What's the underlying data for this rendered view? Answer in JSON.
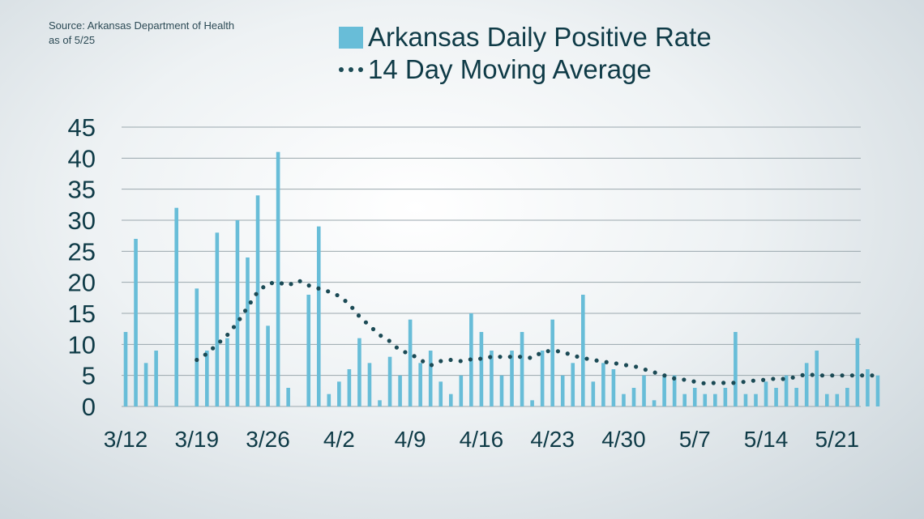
{
  "source": {
    "line1": "Source: Arkansas Department of Health",
    "line2": "as of 5/25"
  },
  "chart_data": {
    "type": "bar",
    "title": "",
    "xlabel": "",
    "ylabel": "",
    "ylim": [
      0,
      45
    ],
    "yticks": [
      0,
      5,
      10,
      15,
      20,
      25,
      30,
      35,
      40,
      45
    ],
    "xtick_labels": [
      "3/12",
      "3/19",
      "3/26",
      "4/2",
      "4/9",
      "4/16",
      "4/23",
      "4/30",
      "5/7",
      "5/14",
      "5/21"
    ],
    "grid": true,
    "legend_position": "top",
    "categories": [
      "3/12",
      "3/13",
      "3/14",
      "3/15",
      "3/16",
      "3/17",
      "3/18",
      "3/19",
      "3/20",
      "3/21",
      "3/22",
      "3/23",
      "3/24",
      "3/25",
      "3/26",
      "3/27",
      "3/28",
      "3/29",
      "3/30",
      "3/31",
      "4/1",
      "4/2",
      "4/3",
      "4/4",
      "4/5",
      "4/6",
      "4/7",
      "4/8",
      "4/9",
      "4/10",
      "4/11",
      "4/12",
      "4/13",
      "4/14",
      "4/15",
      "4/16",
      "4/17",
      "4/18",
      "4/19",
      "4/20",
      "4/21",
      "4/22",
      "4/23",
      "4/24",
      "4/25",
      "4/26",
      "4/27",
      "4/28",
      "4/29",
      "4/30",
      "5/1",
      "5/2",
      "5/3",
      "5/4",
      "5/5",
      "5/6",
      "5/7",
      "5/8",
      "5/9",
      "5/10",
      "5/11",
      "5/12",
      "5/13",
      "5/14",
      "5/15",
      "5/16",
      "5/17",
      "5/18",
      "5/19",
      "5/20",
      "5/21",
      "5/22",
      "5/23",
      "5/24",
      "5/25"
    ],
    "series": [
      {
        "name": "Arkansas Daily Positive Rate",
        "type": "bar",
        "color": "#68bdd8",
        "values": [
          12,
          27,
          7,
          9,
          null,
          32,
          null,
          19,
          9,
          28,
          11,
          30,
          24,
          34,
          13,
          41,
          3,
          null,
          18,
          29,
          2,
          4,
          6,
          11,
          7,
          1,
          8,
          5,
          14,
          7,
          9,
          4,
          2,
          5,
          15,
          12,
          9,
          5,
          9,
          12,
          1,
          9,
          14,
          5,
          7,
          18,
          4,
          7,
          6,
          2,
          3,
          5,
          1,
          5,
          5,
          2,
          3,
          2,
          2,
          3,
          12,
          2,
          2,
          4,
          3,
          5,
          3,
          7,
          9,
          2,
          2,
          3,
          11,
          6,
          5
        ]
      },
      {
        "name": "14 Day Moving Average",
        "type": "line",
        "style": "dotted",
        "color": "#1b4a55",
        "values": [
          null,
          null,
          null,
          null,
          null,
          null,
          null,
          7.5,
          8.5,
          10,
          11.5,
          13.5,
          16,
          18.5,
          19.8,
          20,
          19.5,
          20.3,
          19.5,
          19,
          18.5,
          17.8,
          16.5,
          14.5,
          13,
          11.5,
          10.5,
          9,
          8.5,
          7.5,
          6.6,
          7.3,
          7.5,
          7.3,
          7.6,
          7.7,
          8,
          8,
          8,
          8,
          7.8,
          8.8,
          9,
          8.8,
          8.2,
          7.8,
          7.5,
          7.2,
          7,
          6.7,
          6.5,
          6,
          5.5,
          5,
          4.5,
          4.3,
          4,
          3.7,
          3.8,
          3.8,
          3.8,
          4,
          4.2,
          4.3,
          4.5,
          4.4,
          4.8,
          5.2,
          5,
          5,
          5,
          5,
          5,
          5,
          5
        ]
      }
    ]
  }
}
